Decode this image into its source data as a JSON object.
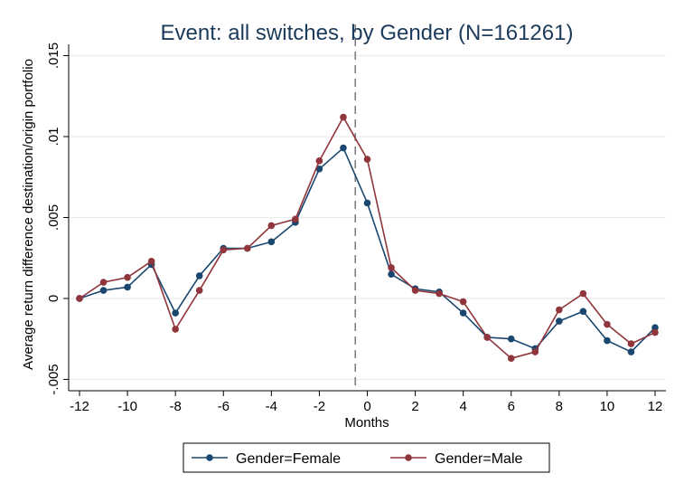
{
  "chart_data": {
    "type": "line",
    "title": "Event: all switches, by Gender (N=161261)",
    "xlabel": "Months",
    "ylabel": "Average return difference destination/origin portfolio",
    "xlim": [
      -12,
      12
    ],
    "ylim": [
      -0.0057,
      0.0157
    ],
    "x_ticks": [
      -12,
      -10,
      -8,
      -6,
      -4,
      -2,
      0,
      2,
      4,
      6,
      8,
      10,
      12
    ],
    "x_tick_labels": [
      "-12",
      "-10",
      "-8",
      "-6",
      "-4",
      "-2",
      "0",
      "2",
      "4",
      "6",
      "8",
      "10",
      "12"
    ],
    "y_ticks": [
      -0.005,
      0,
      0.005,
      0.01,
      0.015
    ],
    "y_tick_labels": [
      "-.005",
      "0",
      ".005",
      ".01",
      ".015"
    ],
    "grid": true,
    "event_line_x": -0.5,
    "legend_position": "bottom",
    "x": [
      -12,
      -11,
      -10,
      -9,
      -8,
      -7,
      -6,
      -5,
      -4,
      -3,
      -2,
      -1,
      0,
      1,
      2,
      3,
      4,
      5,
      6,
      7,
      8,
      9,
      10,
      11,
      12
    ],
    "series": [
      {
        "name": "Gender=Female",
        "color": "#1a476f",
        "values": [
          0.0,
          0.0005,
          0.0007,
          0.0021,
          -0.0009,
          0.0014,
          0.0031,
          0.0031,
          0.0035,
          0.0047,
          0.008,
          0.0093,
          0.0059,
          0.0015,
          0.0006,
          0.0004,
          -0.0009,
          -0.0024,
          -0.0025,
          -0.0031,
          -0.0014,
          -0.0008,
          -0.0026,
          -0.0033,
          -0.0018
        ]
      },
      {
        "name": "Gender=Male",
        "color": "#90353b",
        "values": [
          0.0,
          0.001,
          0.0013,
          0.0023,
          -0.0019,
          0.0005,
          0.003,
          0.0031,
          0.0045,
          0.0049,
          0.0085,
          0.0112,
          0.0086,
          0.0019,
          0.0005,
          0.0003,
          -0.0002,
          -0.0024,
          -0.0037,
          -0.0033,
          -0.0007,
          0.0003,
          -0.0016,
          -0.0028,
          -0.0021
        ]
      }
    ]
  }
}
